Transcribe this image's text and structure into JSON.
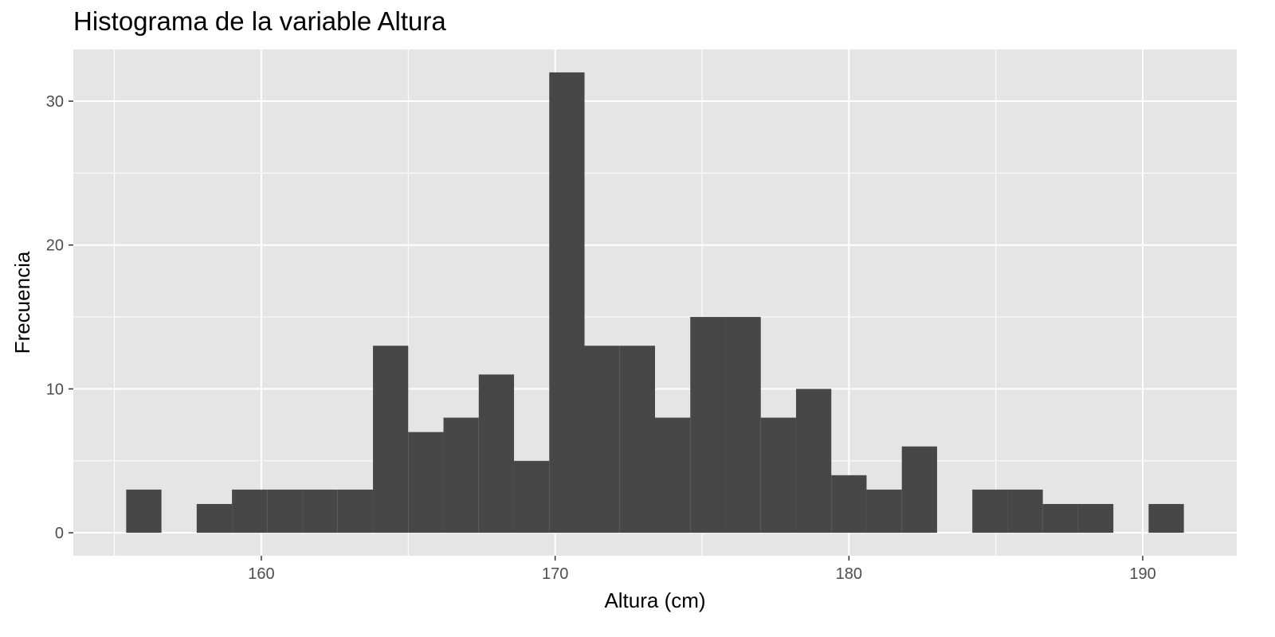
{
  "chart_data": {
    "type": "bar",
    "title": "Histograma de la variable Altura",
    "xlabel": "Altura (cm)",
    "ylabel": "Frecuencia",
    "xlim": [
      153.6,
      193.2
    ],
    "ylim": [
      -1.6,
      33.6
    ],
    "x_ticks": [
      160,
      170,
      180,
      190
    ],
    "y_ticks": [
      0,
      10,
      20,
      30
    ],
    "grid": true,
    "legend": "none",
    "bin_width": 1.2,
    "bins": [
      {
        "x0": 155.4,
        "x1": 156.6,
        "count": 3
      },
      {
        "x0": 157.8,
        "x1": 159.0,
        "count": 2
      },
      {
        "x0": 159.0,
        "x1": 160.2,
        "count": 3
      },
      {
        "x0": 160.2,
        "x1": 161.4,
        "count": 3
      },
      {
        "x0": 161.4,
        "x1": 162.6,
        "count": 3
      },
      {
        "x0": 162.6,
        "x1": 163.8,
        "count": 3
      },
      {
        "x0": 163.8,
        "x1": 165.0,
        "count": 13
      },
      {
        "x0": 165.0,
        "x1": 166.2,
        "count": 7
      },
      {
        "x0": 166.2,
        "x1": 167.4,
        "count": 8
      },
      {
        "x0": 167.4,
        "x1": 168.6,
        "count": 11
      },
      {
        "x0": 168.6,
        "x1": 169.8,
        "count": 5
      },
      {
        "x0": 169.8,
        "x1": 171.0,
        "count": 32
      },
      {
        "x0": 171.0,
        "x1": 172.2,
        "count": 13
      },
      {
        "x0": 172.2,
        "x1": 173.4,
        "count": 13
      },
      {
        "x0": 173.4,
        "x1": 174.6,
        "count": 8
      },
      {
        "x0": 174.6,
        "x1": 175.8,
        "count": 15
      },
      {
        "x0": 175.8,
        "x1": 177.0,
        "count": 15
      },
      {
        "x0": 177.0,
        "x1": 178.2,
        "count": 8
      },
      {
        "x0": 178.2,
        "x1": 179.4,
        "count": 10
      },
      {
        "x0": 179.4,
        "x1": 180.6,
        "count": 4
      },
      {
        "x0": 180.6,
        "x1": 181.8,
        "count": 3
      },
      {
        "x0": 181.8,
        "x1": 183.0,
        "count": 6
      },
      {
        "x0": 184.2,
        "x1": 185.4,
        "count": 3
      },
      {
        "x0": 185.4,
        "x1": 186.6,
        "count": 3
      },
      {
        "x0": 186.6,
        "x1": 187.8,
        "count": 2
      },
      {
        "x0": 187.8,
        "x1": 189.0,
        "count": 2
      },
      {
        "x0": 190.2,
        "x1": 191.4,
        "count": 2
      }
    ],
    "colors": {
      "panel_background": "#e5e5e5",
      "grid_major": "#ffffff",
      "bar_fill": "#474747",
      "tick_text": "#4d4d4d",
      "tick_mark": "#333333"
    }
  }
}
